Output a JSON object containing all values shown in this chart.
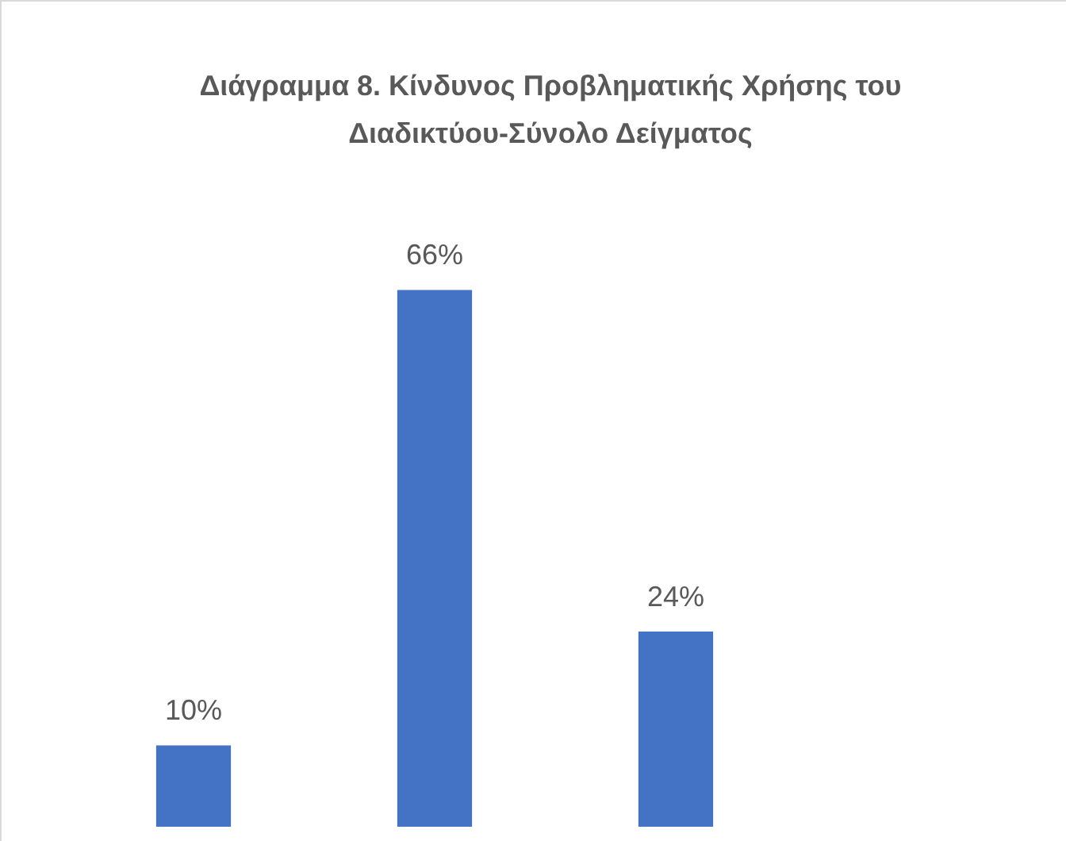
{
  "chart_data": {
    "type": "bar",
    "title": "Διάγραμμα 8. Κίνδυνος Προβληματικής Χρήσης του Διαδικτύου-Σύνολο Δείγματος",
    "categories": [
      null,
      null,
      null
    ],
    "values": [
      10,
      66,
      24
    ],
    "value_labels": [
      "10%",
      "66%",
      "24%"
    ],
    "color": "#4472c4"
  }
}
